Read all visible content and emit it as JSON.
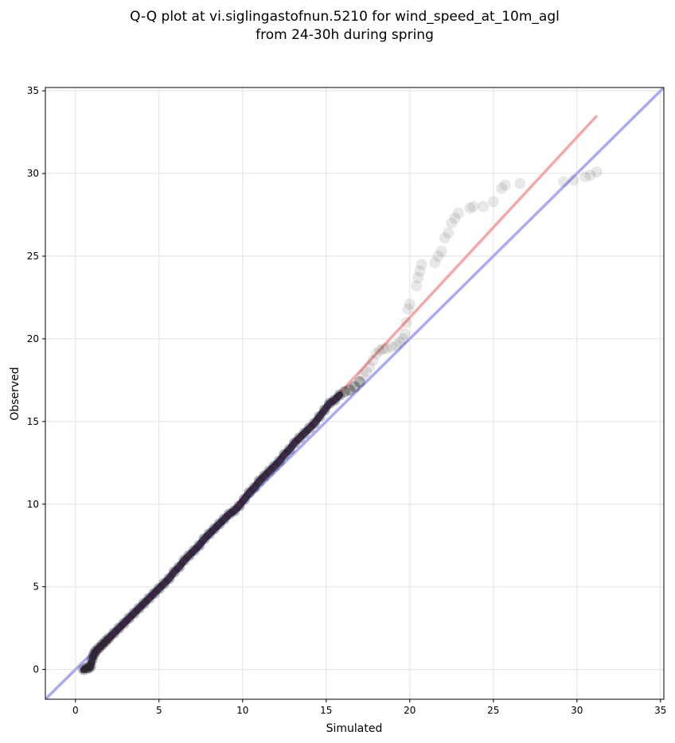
{
  "chart_data": {
    "type": "scatter",
    "title_lines": [
      "Q-Q plot at vi.siglingastofnun.5210 for wind_speed_at_10m_agl",
      "from 24-30h during spring"
    ],
    "xlabel": "Simulated",
    "ylabel": "Observed",
    "xlim": [
      -1.8,
      35.2
    ],
    "ylim": [
      -1.8,
      35.2
    ],
    "xticks": [
      0,
      5,
      10,
      15,
      20,
      25,
      30,
      35
    ],
    "yticks": [
      0,
      5,
      10,
      15,
      20,
      25,
      30,
      35
    ],
    "grid": true,
    "colors": {
      "points": "#222222",
      "identity_line": "#aaaaf5",
      "fit_line": "#f5a8a8",
      "dense_core": "#1a1a5e"
    },
    "identity_line": {
      "x": [
        -1.8,
        35.2
      ],
      "y": [
        -1.8,
        35.2
      ]
    },
    "fit_line": {
      "x": [
        0.3,
        31.2
      ],
      "y": [
        -0.2,
        33.5
      ]
    },
    "series": [
      {
        "points": [
          [
            0.5,
            0.0
          ],
          [
            0.7,
            0.1
          ],
          [
            0.8,
            0.1
          ],
          [
            0.9,
            0.2
          ],
          [
            1.0,
            0.6
          ],
          [
            1.1,
            0.9
          ],
          [
            1.2,
            1.1
          ],
          [
            1.4,
            1.3
          ],
          [
            1.6,
            1.5
          ],
          [
            1.8,
            1.7
          ],
          [
            2.0,
            1.9
          ],
          [
            2.3,
            2.2
          ],
          [
            2.6,
            2.5
          ],
          [
            2.9,
            2.8
          ],
          [
            3.2,
            3.1
          ],
          [
            3.5,
            3.4
          ],
          [
            3.8,
            3.7
          ],
          [
            4.1,
            4.0
          ],
          [
            4.4,
            4.3
          ],
          [
            4.7,
            4.6
          ],
          [
            5.0,
            4.9
          ],
          [
            5.3,
            5.2
          ],
          [
            5.6,
            5.5
          ],
          [
            5.9,
            5.9
          ],
          [
            6.2,
            6.2
          ],
          [
            6.5,
            6.6
          ],
          [
            6.8,
            6.9
          ],
          [
            7.1,
            7.2
          ],
          [
            7.4,
            7.5
          ],
          [
            7.7,
            7.9
          ],
          [
            8.0,
            8.2
          ],
          [
            8.3,
            8.5
          ],
          [
            8.6,
            8.8
          ],
          [
            8.9,
            9.1
          ],
          [
            9.2,
            9.4
          ],
          [
            9.5,
            9.6
          ],
          [
            9.8,
            9.9
          ],
          [
            10.1,
            10.3
          ],
          [
            10.4,
            10.7
          ],
          [
            10.7,
            11.0
          ],
          [
            11.0,
            11.4
          ],
          [
            11.3,
            11.7
          ],
          [
            11.6,
            12.0
          ],
          [
            11.9,
            12.3
          ],
          [
            12.2,
            12.6
          ],
          [
            12.5,
            13.0
          ],
          [
            12.8,
            13.3
          ],
          [
            13.1,
            13.7
          ],
          [
            13.4,
            14.0
          ],
          [
            13.7,
            14.3
          ],
          [
            14.0,
            14.6
          ],
          [
            14.3,
            14.9
          ],
          [
            14.6,
            15.3
          ],
          [
            14.9,
            15.7
          ],
          [
            15.2,
            16.1
          ],
          [
            15.5,
            16.3
          ],
          [
            15.8,
            16.6
          ],
          [
            16.1,
            16.8
          ],
          [
            16.4,
            16.9
          ],
          [
            16.7,
            17.1
          ],
          [
            17.0,
            17.4
          ],
          [
            17.2,
            17.8
          ],
          [
            17.4,
            18.0
          ],
          [
            17.6,
            18.3
          ],
          [
            17.8,
            18.7
          ],
          [
            18.0,
            19.1
          ],
          [
            18.2,
            19.3
          ],
          [
            18.4,
            19.4
          ],
          [
            18.6,
            19.4
          ],
          [
            18.9,
            19.5
          ],
          [
            19.2,
            19.6
          ],
          [
            19.4,
            19.8
          ],
          [
            19.6,
            20.0
          ],
          [
            19.7,
            20.3
          ],
          [
            19.8,
            21.0
          ],
          [
            19.9,
            21.8
          ],
          [
            20.0,
            22.1
          ],
          [
            20.4,
            23.2
          ],
          [
            20.5,
            23.7
          ],
          [
            20.6,
            24.1
          ],
          [
            20.7,
            24.5
          ],
          [
            21.5,
            24.6
          ],
          [
            21.7,
            25.0
          ],
          [
            21.9,
            25.3
          ],
          [
            22.1,
            26.1
          ],
          [
            22.3,
            26.4
          ],
          [
            22.5,
            27.0
          ],
          [
            22.7,
            27.3
          ],
          [
            22.9,
            27.6
          ],
          [
            23.6,
            27.9
          ],
          [
            23.8,
            28.0
          ],
          [
            24.4,
            28.0
          ],
          [
            25.0,
            28.3
          ],
          [
            25.5,
            29.1
          ],
          [
            25.7,
            29.3
          ],
          [
            26.6,
            29.4
          ],
          [
            29.2,
            29.5
          ],
          [
            29.8,
            29.6
          ],
          [
            30.5,
            29.8
          ],
          [
            30.8,
            29.9
          ],
          [
            31.2,
            30.1
          ]
        ]
      }
    ]
  }
}
